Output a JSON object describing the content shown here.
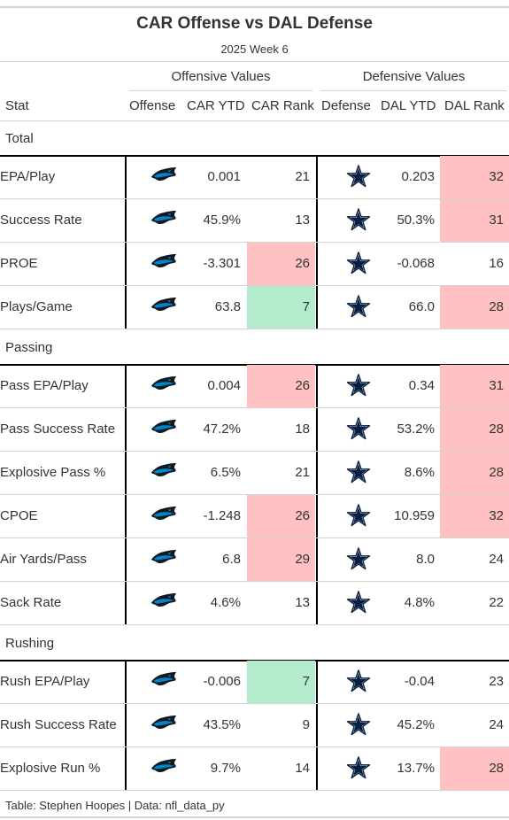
{
  "header": {
    "title": "CAR Offense vs DAL Defense",
    "subtitle": "2025 Week 6",
    "spanner_offense": "Offensive Values",
    "spanner_defense": "Defensive Values"
  },
  "columns": [
    "Stat",
    "Offense",
    "CAR YTD",
    "CAR Rank",
    "Defense",
    "DAL YTD",
    "DAL Rank"
  ],
  "colors": {
    "bad": "#ffc1c1",
    "good": "#b3ebcc",
    "panthers_blue": "#0085ca",
    "cowboys_navy": "#041e42"
  },
  "icons": {
    "offense": "panthers-logo-icon",
    "defense": "cowboys-star-icon"
  },
  "groups": [
    {
      "label": "Total",
      "rows": [
        {
          "stat": "EPA/Play",
          "car_ytd": "0.001",
          "car_rank": "21",
          "car_hl": "",
          "dal_ytd": "0.203",
          "dal_rank": "32",
          "dal_hl": "bad"
        },
        {
          "stat": "Success Rate",
          "car_ytd": "45.9%",
          "car_rank": "13",
          "car_hl": "",
          "dal_ytd": "50.3%",
          "dal_rank": "31",
          "dal_hl": "bad"
        },
        {
          "stat": "PROE",
          "car_ytd": "-3.301",
          "car_rank": "26",
          "car_hl": "bad",
          "dal_ytd": "-0.068",
          "dal_rank": "16",
          "dal_hl": ""
        },
        {
          "stat": "Plays/Game",
          "car_ytd": "63.8",
          "car_rank": "7",
          "car_hl": "good",
          "dal_ytd": "66.0",
          "dal_rank": "28",
          "dal_hl": "bad"
        }
      ]
    },
    {
      "label": "Passing",
      "rows": [
        {
          "stat": "Pass EPA/Play",
          "car_ytd": "0.004",
          "car_rank": "26",
          "car_hl": "bad",
          "dal_ytd": "0.34",
          "dal_rank": "31",
          "dal_hl": "bad"
        },
        {
          "stat": "Pass Success Rate",
          "car_ytd": "47.2%",
          "car_rank": "18",
          "car_hl": "",
          "dal_ytd": "53.2%",
          "dal_rank": "28",
          "dal_hl": "bad"
        },
        {
          "stat": "Explosive Pass %",
          "car_ytd": "6.5%",
          "car_rank": "21",
          "car_hl": "",
          "dal_ytd": "8.6%",
          "dal_rank": "28",
          "dal_hl": "bad"
        },
        {
          "stat": "CPOE",
          "car_ytd": "-1.248",
          "car_rank": "26",
          "car_hl": "bad",
          "dal_ytd": "10.959",
          "dal_rank": "32",
          "dal_hl": "bad"
        },
        {
          "stat": "Air Yards/Pass",
          "car_ytd": "6.8",
          "car_rank": "29",
          "car_hl": "bad",
          "dal_ytd": "8.0",
          "dal_rank": "24",
          "dal_hl": ""
        },
        {
          "stat": "Sack Rate",
          "car_ytd": "4.6%",
          "car_rank": "13",
          "car_hl": "",
          "dal_ytd": "4.8%",
          "dal_rank": "22",
          "dal_hl": ""
        }
      ]
    },
    {
      "label": "Rushing",
      "rows": [
        {
          "stat": "Rush EPA/Play",
          "car_ytd": "-0.006",
          "car_rank": "7",
          "car_hl": "good",
          "dal_ytd": "-0.04",
          "dal_rank": "23",
          "dal_hl": ""
        },
        {
          "stat": "Rush Success Rate",
          "car_ytd": "43.5%",
          "car_rank": "9",
          "car_hl": "",
          "dal_ytd": "45.2%",
          "dal_rank": "24",
          "dal_hl": ""
        },
        {
          "stat": "Explosive Run %",
          "car_ytd": "9.7%",
          "car_rank": "14",
          "car_hl": "",
          "dal_ytd": "13.7%",
          "dal_rank": "28",
          "dal_hl": "bad"
        }
      ]
    }
  ],
  "footer": "Table: Stephen Hoopes | Data: nfl_data_py"
}
